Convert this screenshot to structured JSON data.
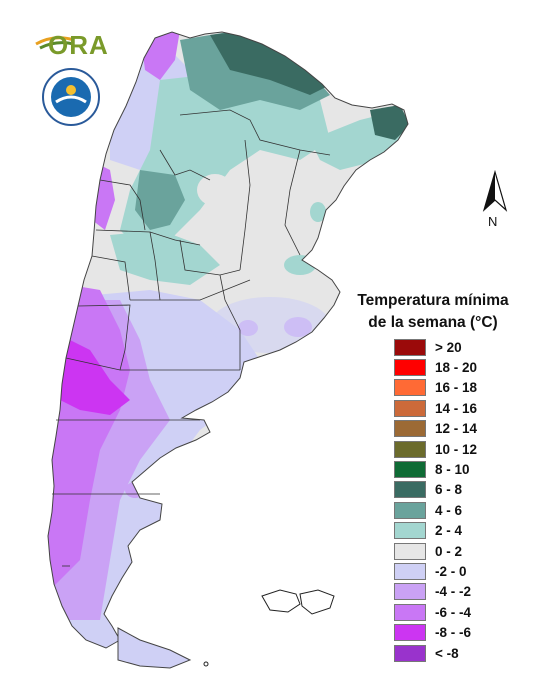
{
  "logos": {
    "ora_text": "ORA",
    "smn_alt": "Servicio Meteorológico Nacional Argentina"
  },
  "north_label": "N",
  "legend": {
    "title_line1": "Temperatura mínima",
    "title_line2": "de la semana (°C)",
    "items": [
      {
        "label": "> 20",
        "color": "#9b0a0a"
      },
      {
        "label": "18 - 20",
        "color": "#ff0000"
      },
      {
        "label": "16 - 18",
        "color": "#ff6a35"
      },
      {
        "label": "14 - 16",
        "color": "#cc6a3a"
      },
      {
        "label": "12 - 14",
        "color": "#9c6a35"
      },
      {
        "label": "10 - 12",
        "color": "#6b6b2c"
      },
      {
        "label": "8 - 10",
        "color": "#0f6b35"
      },
      {
        "label": "6 - 8",
        "color": "#3a6b62"
      },
      {
        "label": "4 - 6",
        "color": "#6aa39c"
      },
      {
        "label": "2 - 4",
        "color": "#a3d6d0"
      },
      {
        "label": "0 - 2",
        "color": "#e6e6e6"
      },
      {
        "label": "-2 - 0",
        "color": "#cfd0f5"
      },
      {
        "label": "-4 - -2",
        "color": "#caa2f5"
      },
      {
        "label": "-6 - -4",
        "color": "#c977f5"
      },
      {
        "label": "-8 - -6",
        "color": "#cc35f2"
      },
      {
        "label": "< -8",
        "color": "#9933cc"
      }
    ]
  }
}
